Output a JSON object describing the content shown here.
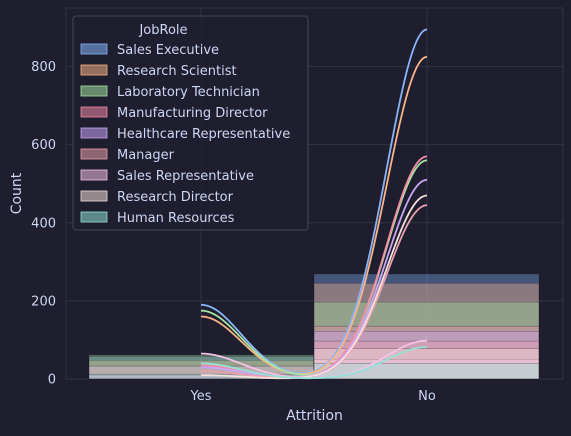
{
  "chart_data": {
    "type": "histogram_kde",
    "xlabel": "Attrition",
    "ylabel": "Count",
    "categories": [
      "Yes",
      "No"
    ],
    "ylim": [
      0,
      950
    ],
    "yticks": [
      0,
      200,
      400,
      600,
      800
    ],
    "grid": true,
    "legend": {
      "title": "JobRole",
      "position": "top-left"
    },
    "series": [
      {
        "name": "Sales Executive",
        "color": "#89b4fa",
        "values": [
          57,
          269
        ],
        "kde_peaks": [
          190,
          895
        ]
      },
      {
        "name": "Research Scientist",
        "color": "#fab387",
        "values": [
          47,
          245
        ],
        "kde_peaks": [
          160,
          825
        ]
      },
      {
        "name": "Laboratory Technician",
        "color": "#a6e3a1",
        "values": [
          62,
          197
        ],
        "kde_peaks": [
          175,
          560
        ]
      },
      {
        "name": "Manufacturing Director",
        "color": "#f38ba8",
        "values": [
          10,
          135
        ],
        "kde_peaks": [
          35,
          570
        ]
      },
      {
        "name": "Healthcare Representative",
        "color": "#cba6f7",
        "values": [
          9,
          122
        ],
        "kde_peaks": [
          30,
          510
        ]
      },
      {
        "name": "Manager",
        "color": "#eba0ac",
        "values": [
          5,
          97
        ],
        "kde_peaks": [
          20,
          445
        ]
      },
      {
        "name": "Sales Representative",
        "color": "#f5c2e7",
        "values": [
          33,
          50
        ],
        "kde_peaks": [
          65,
          98
        ]
      },
      {
        "name": "Research Director",
        "color": "#f5e0dc",
        "values": [
          2,
          78
        ],
        "kde_peaks": [
          10,
          470
        ]
      },
      {
        "name": "Human Resources",
        "color": "#94e2d5",
        "values": [
          12,
          40
        ],
        "kde_peaks": [
          40,
          82
        ]
      }
    ]
  }
}
